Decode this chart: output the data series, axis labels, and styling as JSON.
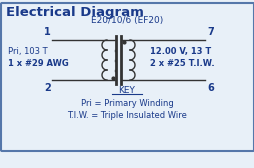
{
  "title": "Electrical Diagram",
  "core_label": "E20/10/6 (EF20)",
  "bg_color": "#e8f0f8",
  "border_color": "#5577aa",
  "title_color": "#1a3a8a",
  "text_color": "#1a3a8a",
  "pin1_label": "1",
  "pin2_label": "2",
  "pin7_label": "7",
  "pin6_label": "6",
  "pri_label_line1": "Pri, 103 T",
  "pri_label_line2": "1 x #29 AWG",
  "sec_label_line1": "12.00 V, 13 T",
  "sec_label_line2": "2 x #25 T.I.W.",
  "key_label": "KEY",
  "key_line1": "Pri = Primary Winding",
  "key_line2": "T.I.W. = Triple Insulated Wire"
}
